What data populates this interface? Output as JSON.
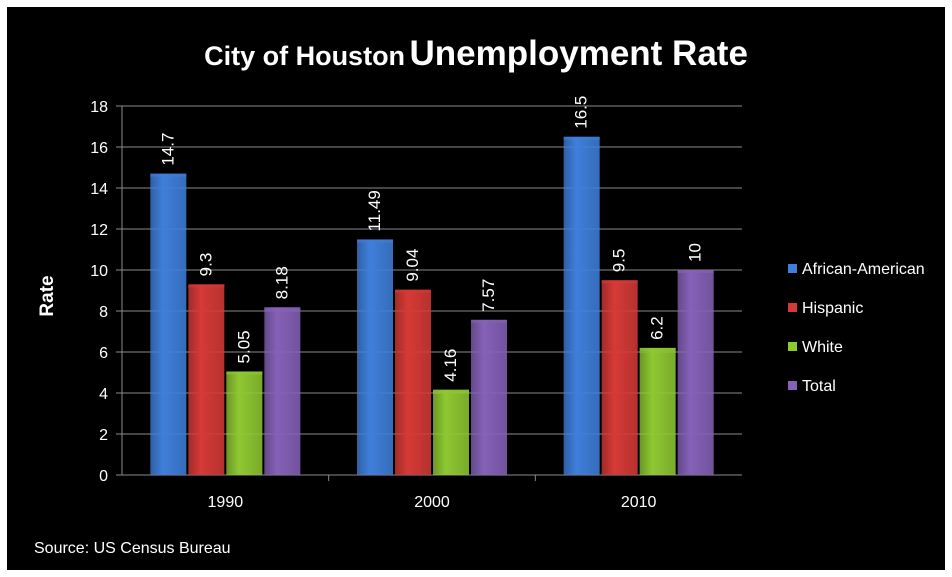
{
  "chart_data": {
    "type": "bar",
    "title_part1": "City of Houston",
    "title_part2": "Unemployment Rate",
    "ylabel": "Rate",
    "xlabel": "",
    "ylim": [
      0,
      18
    ],
    "yticks": [
      0,
      2,
      4,
      6,
      8,
      10,
      12,
      14,
      16,
      18
    ],
    "grid": true,
    "legend_position": "right",
    "categories": [
      "1990",
      "2000",
      "2010"
    ],
    "series": [
      {
        "name": "African-American",
        "values": [
          14.7,
          11.49,
          16.5
        ],
        "labels": [
          "14.7",
          "11.49",
          "16.5"
        ],
        "color": "#3f7fdb"
      },
      {
        "name": "Hispanic",
        "values": [
          9.3,
          9.04,
          9.5
        ],
        "labels": [
          "9.3",
          "9.04",
          "9.5"
        ],
        "color": "#d63a36"
      },
      {
        "name": "White",
        "values": [
          5.05,
          4.16,
          6.2
        ],
        "labels": [
          "5.05",
          "4.16",
          "6.2"
        ],
        "color": "#8fc832"
      },
      {
        "name": "Total",
        "values": [
          8.18,
          7.57,
          10
        ],
        "labels": [
          "8.18",
          "7.57",
          "10"
        ],
        "color": "#8561b8"
      }
    ]
  },
  "footer": {
    "source": "Source: US Census Bureau"
  }
}
